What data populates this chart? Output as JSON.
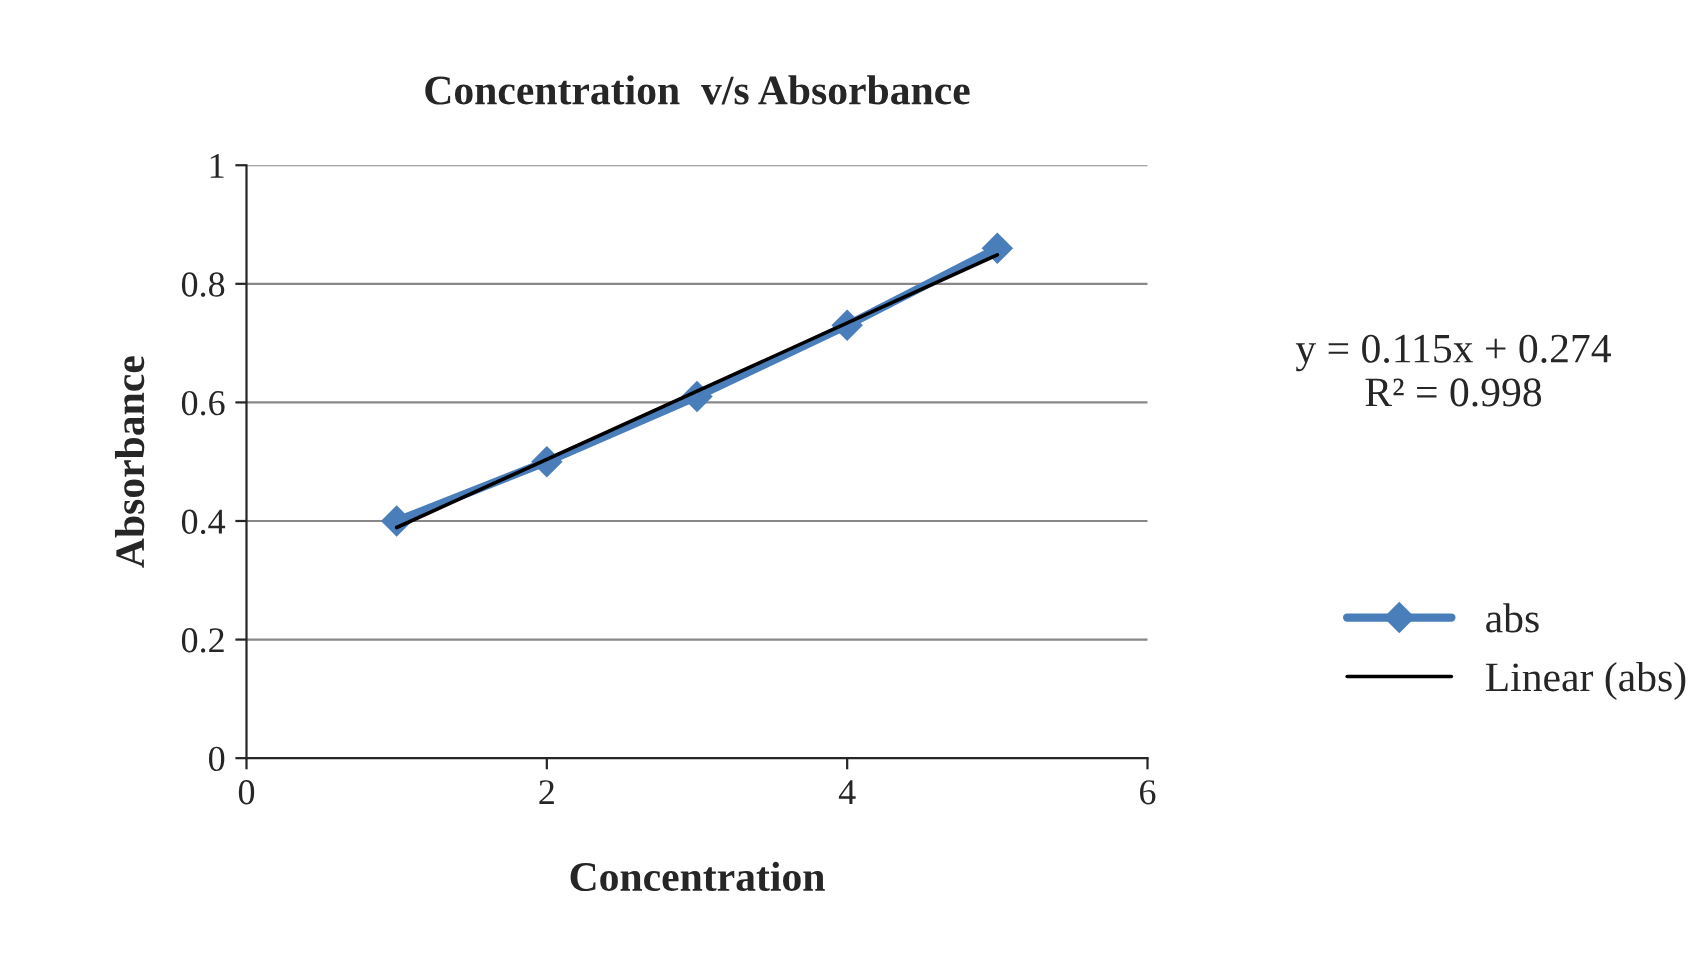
{
  "chart_data": {
    "type": "line",
    "title": "Concentration  v/s Absorbance",
    "xlabel": "Concentration",
    "ylabel": "Absorbance",
    "series": [
      {
        "name": "abs",
        "color": "#4a7ebb",
        "marker": "diamond",
        "x": [
          1,
          2,
          3,
          4,
          5
        ],
        "values": [
          0.4,
          0.5,
          0.61,
          0.73,
          0.86
        ]
      },
      {
        "name": "Linear (abs)",
        "color": "#000000",
        "marker": "none",
        "x": [
          1,
          5
        ],
        "values": [
          0.389,
          0.849
        ]
      }
    ],
    "annotations": [
      "y = 0.115x + 0.274\nR² = 0.998"
    ],
    "xlim": [
      0,
      6
    ],
    "xticks": [
      0,
      2,
      4,
      6
    ],
    "ylim": [
      0,
      1
    ],
    "yticks": [
      0,
      0.2,
      0.4,
      0.6,
      0.8,
      1
    ],
    "grid": "y",
    "legend": "right"
  }
}
